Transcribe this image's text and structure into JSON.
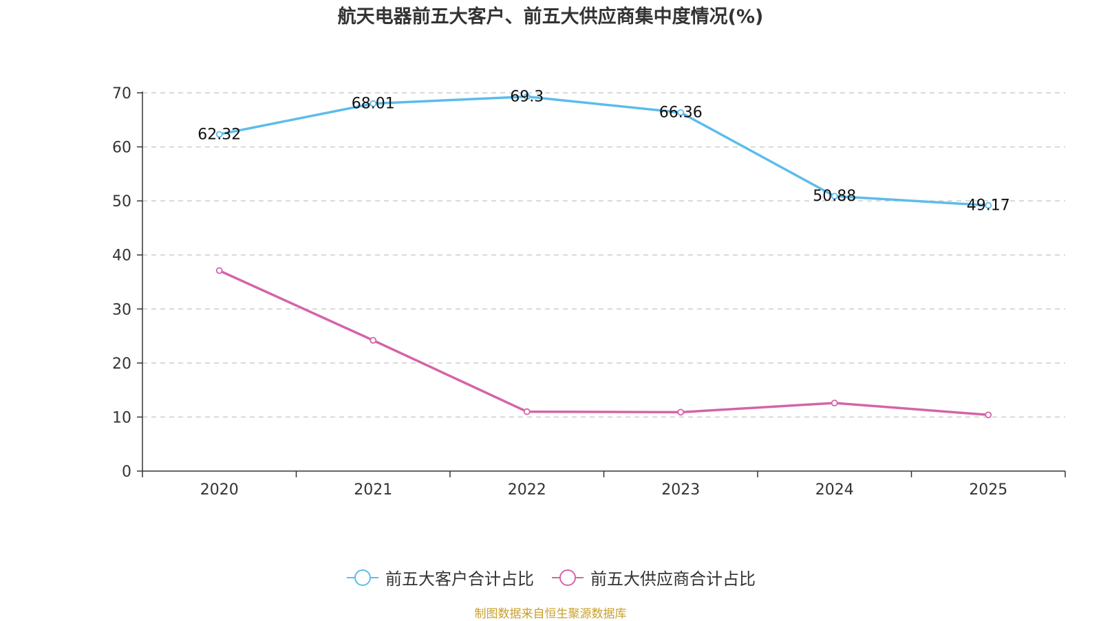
{
  "chart_data": {
    "type": "line",
    "title": "航天电器前五大客户、前五大供应商集中度情况(%)",
    "categories": [
      "2020",
      "2021",
      "2022",
      "2023",
      "2024",
      "2025"
    ],
    "series": [
      {
        "name": "前五大客户合计占比",
        "color": "#5bbcec",
        "values": [
          62.32,
          68.01,
          69.3,
          66.36,
          50.88,
          49.17
        ],
        "show_labels": true
      },
      {
        "name": "前五大供应商合计占比",
        "color": "#d464a8",
        "values": [
          37.1,
          24.2,
          11.0,
          10.9,
          12.6,
          10.4
        ],
        "show_labels": false
      }
    ],
    "y_ticks": [
      "0",
      "10",
      "20",
      "30",
      "40",
      "50",
      "60",
      "70"
    ],
    "ylim": [
      0,
      70
    ],
    "grid": true,
    "legend_position": "bottom-center",
    "xlabel": "",
    "ylabel": ""
  },
  "source": "制图数据来自恒生聚源数据库"
}
